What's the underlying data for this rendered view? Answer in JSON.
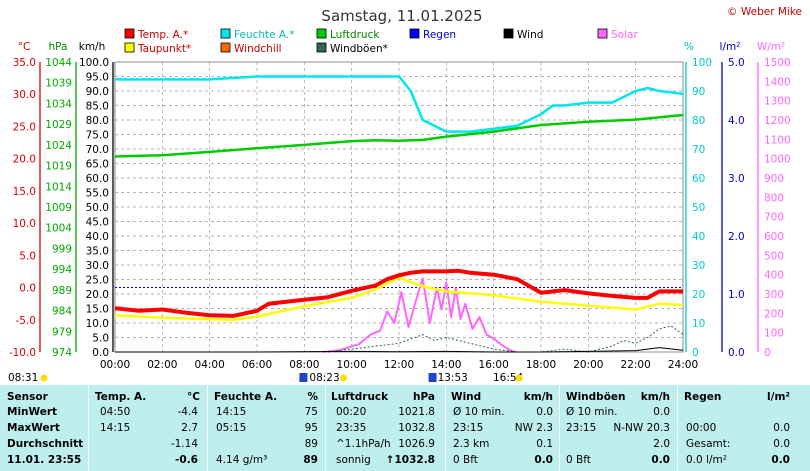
{
  "header": {
    "title": "Samstag, 11.01.2025",
    "copyright": "© Weber Mike"
  },
  "legend": [
    {
      "label": "Temp. A.*",
      "color": "#ff0000",
      "text_color": "#cc0000"
    },
    {
      "label": "Feuchte A.*",
      "color": "#00e5ee",
      "text_color": "#00bbbb"
    },
    {
      "label": "Luftdruck",
      "color": "#00cc00",
      "text_color": "#008800"
    },
    {
      "label": "Regen",
      "color": "#0000ff",
      "text_color": "#0000cc"
    },
    {
      "label": "Wind",
      "color": "#000000",
      "text_color": "#000000"
    },
    {
      "label": "Solar",
      "color": "#ff66ff",
      "text_color": "#ff66ff"
    },
    {
      "label": "Taupunkt*",
      "color": "#ffff00",
      "text_color": "#cc0000"
    },
    {
      "label": "Windchill",
      "color": "#ff6600",
      "text_color": "#cc0000"
    },
    {
      "label": "Windböen*",
      "color": "#336655",
      "text_color": "#000000"
    }
  ],
  "axis_units": {
    "celsius": "°C",
    "hpa": "hPa",
    "kmh": "km/h",
    "percent": "%",
    "rain": "l/m²",
    "solar": "W/m²"
  },
  "axis_ticks": {
    "celsius": [
      "35.0",
      "30.0",
      "25.0",
      "20.0",
      "15.0",
      "10.0",
      "5.0",
      "0.0",
      "-5.0",
      "-10.0"
    ],
    "hpa": [
      "1044",
      "1039",
      "1034",
      "1029",
      "1024",
      "1019",
      "1014",
      "1009",
      "1004",
      "999",
      "994",
      "989",
      "984",
      "979",
      "974"
    ],
    "kmh": [
      "100.0",
      "95.0",
      "90.0",
      "85.0",
      "80.0",
      "75.0",
      "70.0",
      "65.0",
      "60.0",
      "55.0",
      "50.0",
      "45.0",
      "40.0",
      "35.0",
      "30.0",
      "25.0",
      "20.0",
      "15.0",
      "10.0",
      "5.0",
      "0.0"
    ],
    "percent": [
      "100",
      "90",
      "80",
      "70",
      "60",
      "50",
      "40",
      "30",
      "20",
      "10",
      "0"
    ],
    "rain": [
      "5.0",
      "4.0",
      "3.0",
      "2.0",
      "1.0",
      "0.0"
    ],
    "solar": [
      "1500",
      "1400",
      "1300",
      "1200",
      "1100",
      "1000",
      "900",
      "800",
      "700",
      "600",
      "500",
      "400",
      "300",
      "200",
      "100",
      "0"
    ],
    "time": [
      "00:00",
      "02:00",
      "04:00",
      "06:00",
      "08:00",
      "10:00",
      "12:00",
      "14:00",
      "16:00",
      "18:00",
      "20:00",
      "22:00",
      "24:00"
    ]
  },
  "sun_events": {
    "sunrise": "08:23",
    "noon": "13:53",
    "sunset": "16:54",
    "left_time": "08:31"
  },
  "chart_data": {
    "type": "line",
    "title": "Samstag, 11.01.2025",
    "x_unit": "hours",
    "xlim": [
      0,
      24
    ],
    "series": [
      {
        "name": "Temp. A.*",
        "axis": "celsius",
        "ylim": [
          -10,
          35
        ],
        "color": "#ff0000",
        "x": [
          0,
          1,
          2,
          3,
          4,
          5,
          6,
          6.5,
          7,
          8,
          9,
          10,
          11,
          11.5,
          12,
          12.5,
          13,
          14,
          14.5,
          15,
          16,
          17,
          18,
          19,
          20,
          21,
          22,
          22.5,
          23,
          24
        ],
        "y": [
          -3.2,
          -3.6,
          -3.4,
          -3.9,
          -4.3,
          -4.4,
          -3.6,
          -2.5,
          -2.3,
          -1.9,
          -1.5,
          -0.5,
          0.3,
          1.3,
          1.9,
          2.3,
          2.5,
          2.5,
          2.6,
          2.3,
          2.0,
          1.3,
          -0.8,
          -0.4,
          -0.9,
          -1.3,
          -1.6,
          -1.6,
          -0.6,
          -0.6
        ]
      },
      {
        "name": "Taupunkt*",
        "axis": "celsius",
        "ylim": [
          -10,
          35
        ],
        "color": "#ffff00",
        "x": [
          0,
          2,
          4,
          5,
          6,
          8,
          10,
          11,
          12,
          13,
          14,
          16,
          18,
          20,
          21,
          22,
          23,
          24
        ],
        "y": [
          -4.3,
          -4.7,
          -4.9,
          -5.0,
          -4.5,
          -2.9,
          -1.6,
          -0.3,
          1.5,
          0.2,
          -0.6,
          -1.2,
          -2.2,
          -2.8,
          -3.1,
          -3.4,
          -2.5,
          -2.7
        ]
      },
      {
        "name": "Feuchte A.*",
        "axis": "percent",
        "ylim": [
          0,
          100
        ],
        "color": "#00e5ee",
        "x": [
          0,
          2,
          4,
          6,
          8,
          10,
          11,
          12,
          12.5,
          13,
          14,
          15,
          16,
          17,
          18,
          18.5,
          19,
          20,
          21,
          22,
          22.5,
          23,
          24
        ],
        "y": [
          94,
          94,
          94,
          95,
          95,
          95,
          95,
          95,
          90,
          80,
          76,
          76,
          77,
          78,
          82,
          85,
          85,
          86,
          86,
          90,
          91,
          90,
          89
        ]
      },
      {
        "name": "Luftdruck",
        "axis": "hpa",
        "ylim": [
          974,
          1044
        ],
        "color": "#00cc00",
        "x": [
          0,
          2,
          4,
          6,
          8,
          10,
          11,
          12,
          13,
          14,
          16,
          18,
          20,
          22,
          24
        ],
        "y": [
          1021.2,
          1021.5,
          1022.3,
          1023.2,
          1024.0,
          1024.9,
          1025.1,
          1025.0,
          1025.2,
          1026.0,
          1027.2,
          1028.8,
          1029.6,
          1030.1,
          1031.2
        ]
      },
      {
        "name": "Solar",
        "axis": "solar",
        "ylim": [
          0,
          1500
        ],
        "color": "#ff66ff",
        "x": [
          8.8,
          9.5,
          10.3,
          10.8,
          11.2,
          11.5,
          11.8,
          12.1,
          12.4,
          12.7,
          13,
          13.3,
          13.6,
          13.8,
          14,
          14.2,
          14.4,
          14.6,
          14.8,
          15.1,
          15.4,
          15.7,
          16,
          16.3,
          16.6,
          16.9
        ],
        "y": [
          0,
          10,
          40,
          90,
          110,
          210,
          150,
          310,
          130,
          260,
          380,
          150,
          330,
          220,
          360,
          180,
          330,
          170,
          250,
          120,
          180,
          90,
          70,
          40,
          15,
          0
        ]
      },
      {
        "name": "Windböen*",
        "axis": "kmh",
        "ylim": [
          0,
          100
        ],
        "color": "#336655",
        "x": [
          9,
          10,
          11,
          12,
          13,
          13.5,
          14,
          15,
          16,
          17,
          18,
          19,
          20,
          21,
          21.5,
          22,
          22.5,
          23,
          23.5,
          24
        ],
        "y": [
          0,
          1,
          2,
          3,
          6,
          4,
          5,
          3,
          1,
          0,
          0,
          1,
          0,
          2,
          4,
          3,
          5,
          8,
          9,
          6
        ]
      },
      {
        "name": "Wind",
        "axis": "kmh",
        "ylim": [
          0,
          100
        ],
        "color": "#000000",
        "x": [
          0,
          6,
          10,
          12,
          14,
          16,
          18,
          20,
          22,
          23,
          24
        ],
        "y": [
          0,
          0,
          0.2,
          0.1,
          0.2,
          0,
          0,
          0.2,
          0.5,
          1.5,
          0.6
        ]
      }
    ],
    "reference_line": {
      "axis": "celsius",
      "value": 0,
      "color": "#0000cc"
    }
  },
  "table": {
    "headers": [
      "Sensor",
      "Temp. A.",
      "°C",
      "Feuchte A.",
      "%",
      "Luftdruck",
      "hPa",
      "Wind",
      "km/h",
      "Windböen",
      "km/h",
      "Regen",
      "l/m²"
    ],
    "rows": [
      {
        "label": "MinWert",
        "temp_time": "04:50",
        "temp": "-4.4",
        "hum_time": "14:15",
        "hum": "75",
        "pres_time": "00:20",
        "pres": "1021.8",
        "wind_desc": "Ø 10 min.",
        "wind": "0.0",
        "gust_desc": "Ø 10 min.",
        "gust": "0.0",
        "rain_desc": "",
        "rain": ""
      },
      {
        "label": "MaxWert",
        "temp_time": "14:15",
        "temp": "2.7",
        "hum_time": "05:15",
        "hum": "95",
        "pres_time": "23:35",
        "pres": "1032.8",
        "wind_desc": "23:15",
        "wind": "NW 2.3",
        "gust_desc": "23:15",
        "gust": "N-NW 20.3",
        "rain_desc": "00:00",
        "rain": "0.0"
      },
      {
        "label": "Durchschnitt",
        "temp_time": "",
        "temp": "-1.14",
        "hum_time": "",
        "hum": "89",
        "pres_time": "^1.1hPa/h",
        "pres": "1026.9",
        "wind_desc": "2.3 km",
        "wind": "0.1",
        "gust_desc": "",
        "gust": "2.0",
        "rain_desc": "Gesamt:",
        "rain": "0.0"
      },
      {
        "label": "11.01. 23:55",
        "temp_time": "",
        "temp": "-0.6",
        "hum_time": "4.14 g/m³",
        "hum": "89",
        "pres_time": "sonnig",
        "pres": "↑1032.8",
        "wind_desc": "0 Bft",
        "wind": "0.0",
        "gust_desc": "0 Bft",
        "gust": "0.0",
        "rain_desc": "0.0 l/m²",
        "rain": "0.0"
      }
    ]
  }
}
